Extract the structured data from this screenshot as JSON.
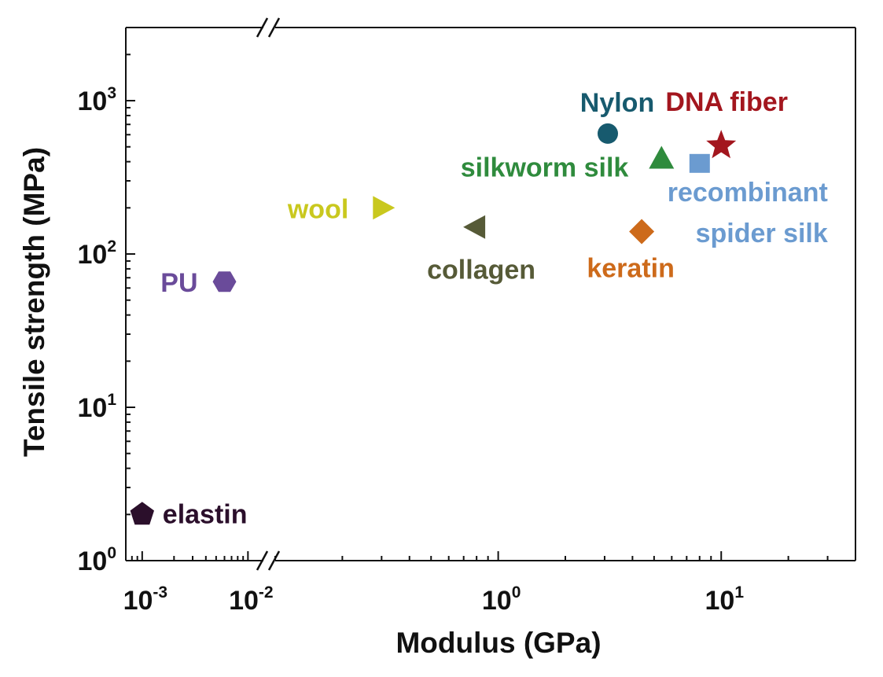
{
  "chart_data": {
    "type": "scatter",
    "xlabel": "Modulus (GPa)",
    "ylabel": "Tensile strength (MPa)",
    "x_scale": "log-broken",
    "y_scale": "log",
    "xlim_left": [
      0.0007,
      0.014
    ],
    "xlim_right": [
      0.1,
      40
    ],
    "ylim": [
      1,
      3000
    ],
    "axis_break": "between 10^-2 and 10^-1 on the modulus axis",
    "grid": false,
    "x_ticks": [
      {
        "base": "10",
        "exp": "-3",
        "value": 0.001
      },
      {
        "base": "10",
        "exp": "-2",
        "value": 0.01
      },
      {
        "base": "10",
        "exp": "0",
        "value": 1
      },
      {
        "base": "10",
        "exp": "1",
        "value": 10
      }
    ],
    "y_ticks": [
      {
        "base": "10",
        "exp": "0",
        "value": 1
      },
      {
        "base": "10",
        "exp": "1",
        "value": 10
      },
      {
        "base": "10",
        "exp": "2",
        "value": 100
      },
      {
        "base": "10",
        "exp": "3",
        "value": 1000
      }
    ],
    "points": [
      {
        "label": "elastin",
        "x": 0.001,
        "y": 2,
        "marker": "pentagon",
        "color": "#2b0f2b",
        "label_pos": "right"
      },
      {
        "label": "PU",
        "x": 0.006,
        "y": 66,
        "marker": "hexagon",
        "color": "#6a4b9a",
        "label_pos": "left"
      },
      {
        "label": "wool",
        "x": 0.3,
        "y": 200,
        "marker": "triangle-right",
        "color": "#c9c81e",
        "label_pos": "left"
      },
      {
        "label": "collagen",
        "x": 0.8,
        "y": 150,
        "marker": "triangle-left",
        "color": "#565a37",
        "label_pos": "below"
      },
      {
        "label": "Nylon",
        "x": 3.1,
        "y": 610,
        "marker": "circle",
        "color": "#175a6e",
        "label_pos": "above"
      },
      {
        "label": "silkworm silk",
        "x": 5.4,
        "y": 420,
        "marker": "triangle-up",
        "color": "#2f8b3d",
        "label_pos": "left"
      },
      {
        "label": "keratin",
        "x": 4.4,
        "y": 140,
        "marker": "diamond",
        "color": "#cd6a1a",
        "label_pos": "below"
      },
      {
        "label": "DNA fiber",
        "x": 10,
        "y": 510,
        "marker": "star",
        "color": "#a3161e",
        "label_pos": "above"
      },
      {
        "label": "recombinant spider silk",
        "x": 8,
        "y": 390,
        "marker": "square",
        "color": "#6b9bd0",
        "label_pos": "below"
      }
    ]
  }
}
